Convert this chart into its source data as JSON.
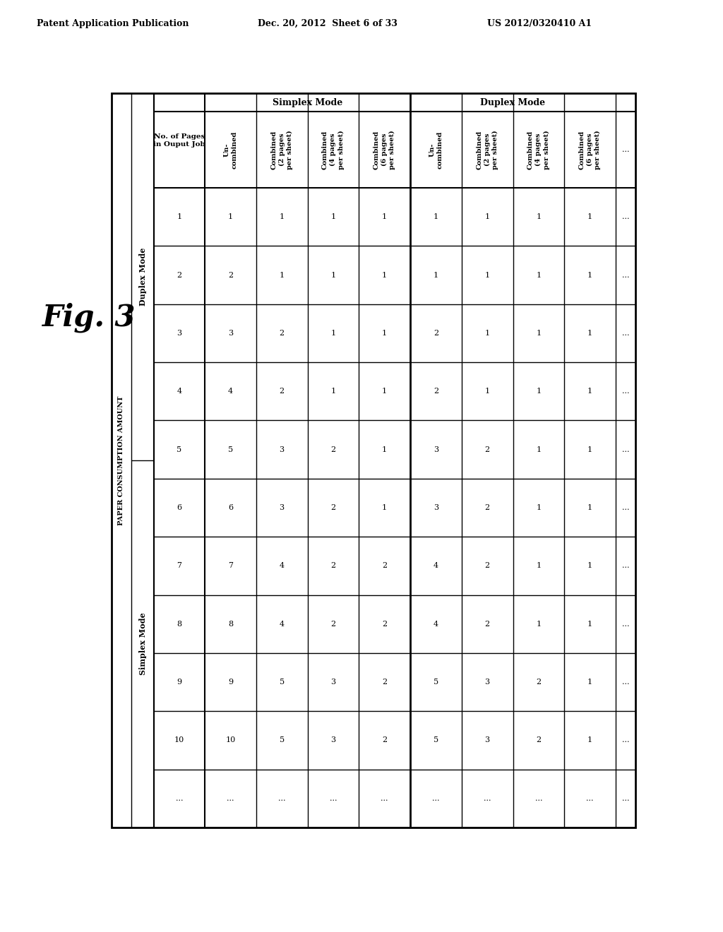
{
  "header_left": "Patent Application Publication",
  "header_mid": "Dec. 20, 2012  Sheet 6 of 33",
  "header_right": "US 2012/0320410 A1",
  "fig_label": "Fig. 3",
  "side_label": "PAPER CONSUMPTION AMOUNT",
  "no_of_pages_header": "No. of Pages\nin Ouput Job",
  "simplex_label": "Simplex Mode",
  "duplex_label": "Duplex Mode",
  "col_headers": [
    "No. of Pages\nin Ouput Job",
    "Un-\ncombined",
    "Combined\n(2 pages\nper sheet)",
    "Combined\n(4 pages\nper sheet)",
    "Combined\n(6 pages\nper sheet)",
    "Un-\ncombined",
    "Combined\n(2 pages\nper sheet)",
    "Combined\n(4 pages\nper sheet)",
    "Combined\n(6 pages\nper sheet)",
    "..."
  ],
  "row_labels": [
    "1",
    "2",
    "3",
    "4",
    "5",
    "6",
    "7",
    "8",
    "9",
    "10",
    "..."
  ],
  "simplex_uncombined": [
    "1",
    "2",
    "3",
    "4",
    "5",
    "6",
    "7",
    "8",
    "9",
    "10",
    "..."
  ],
  "simplex_2pages": [
    "1",
    "1",
    "2",
    "2",
    "3",
    "3",
    "4",
    "4",
    "5",
    "5",
    "..."
  ],
  "simplex_4pages": [
    "1",
    "1",
    "1",
    "1",
    "2",
    "2",
    "2",
    "2",
    "3",
    "3",
    "..."
  ],
  "simplex_6pages": [
    "1",
    "1",
    "1",
    "1",
    "1",
    "1",
    "2",
    "2",
    "2",
    "2",
    "..."
  ],
  "duplex_uncombined": [
    "1",
    "1",
    "2",
    "2",
    "3",
    "3",
    "4",
    "4",
    "5",
    "5",
    "..."
  ],
  "duplex_2pages": [
    "1",
    "1",
    "1",
    "1",
    "2",
    "2",
    "2",
    "2",
    "3",
    "3",
    "..."
  ],
  "duplex_4pages": [
    "1",
    "1",
    "1",
    "1",
    "1",
    "1",
    "1",
    "1",
    "2",
    "2",
    "..."
  ],
  "duplex_6pages": [
    "1",
    "1",
    "1",
    "1",
    "1",
    "1",
    "1",
    "1",
    "1",
    "1",
    "..."
  ],
  "background": "#ffffff",
  "text_color": "#000000"
}
